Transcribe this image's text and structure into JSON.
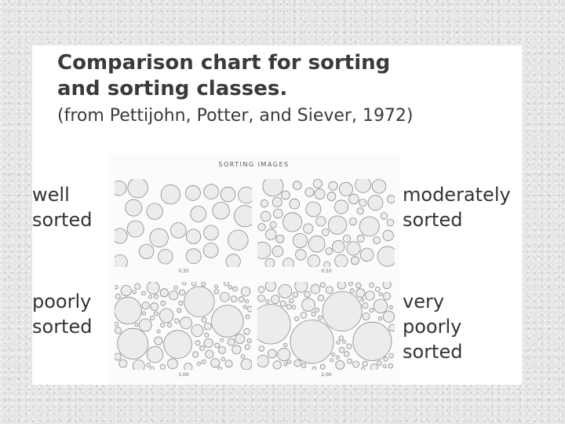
{
  "title": {
    "line1": "Comparison chart for sorting",
    "line2": "and sorting classes."
  },
  "subtitle": "(from Pettijohn, Potter, and Siever, 1972)",
  "image_caption": "SORTING IMAGES",
  "labels": {
    "well_sorted": [
      "well",
      "sorted"
    ],
    "moderately_sorted": [
      "moderately",
      "sorted"
    ],
    "poorly_sorted": [
      "poorly",
      "sorted"
    ],
    "very_poorly_sorted": [
      "very",
      "poorly",
      "sorted"
    ]
  },
  "panel_values": [
    "0.35",
    "0.50",
    "1.00",
    "2.00"
  ],
  "colors": {
    "grain_fill": "#ececec",
    "grain_stroke": "#8a8a8a",
    "text": "#333333"
  }
}
